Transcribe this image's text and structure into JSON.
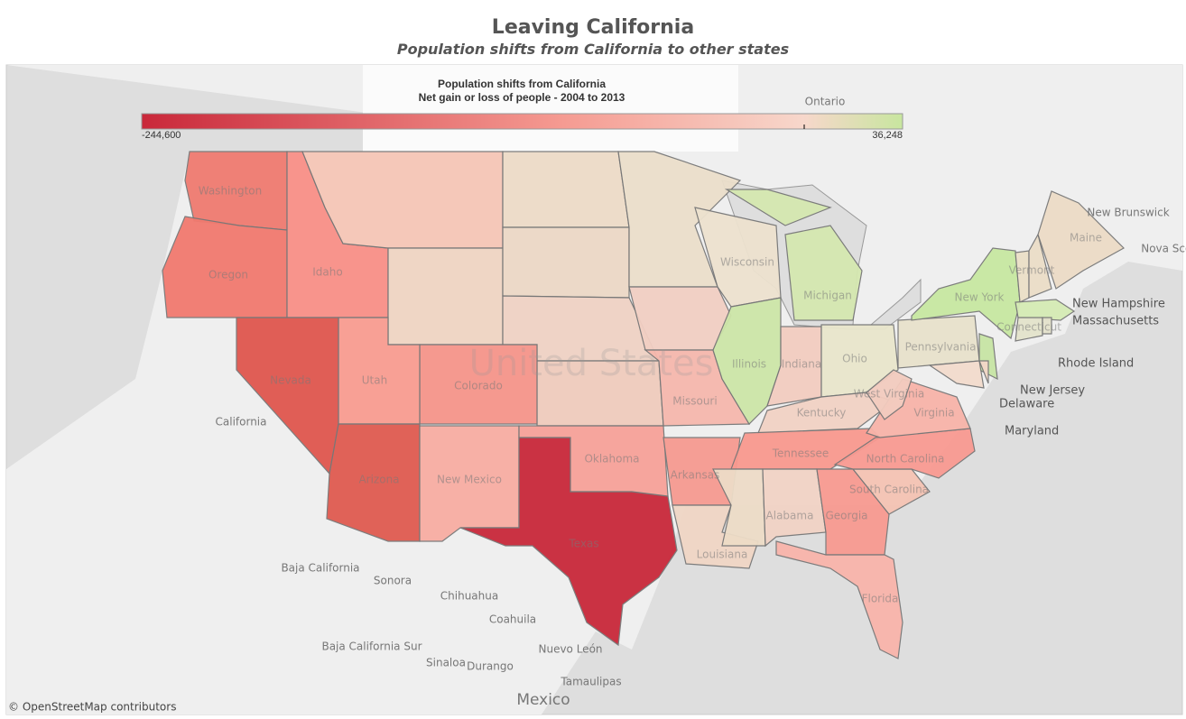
{
  "header": {
    "title": "Leaving California",
    "subtitle": "Population shifts from California to other states"
  },
  "legend": {
    "title": "Population shifts from California",
    "subtitle": "Net gain or loss of people - 2004 to 2013",
    "min_label": "-244,600",
    "max_label": "36,248",
    "colors": [
      "#c9283a",
      "#f59a91",
      "#f7d7cb",
      "#c8e69f"
    ]
  },
  "states": [
    {
      "name": "Washington",
      "color": "#f07b70"
    },
    {
      "name": "Oregon",
      "color": "#f27a6f"
    },
    {
      "name": "Idaho",
      "color": "#f99087"
    },
    {
      "color": "#f6c6b7"
    },
    {
      "color": "#f0d5c3"
    },
    {
      "color": "#eddcc8"
    },
    {
      "color": "#ecd8c6"
    },
    {
      "color": "#efd2c4"
    },
    {
      "color": "#f0ccbd"
    },
    {
      "name": "Colorado",
      "color": "#f6958a"
    },
    {
      "name": "Utah",
      "color": "#f99c91"
    },
    {
      "name": "Nevada",
      "color": "#e0574e"
    },
    {
      "name": "Arizona",
      "color": "#e05b50"
    },
    {
      "name": "New Mexico",
      "color": "#f8ada3"
    },
    {
      "name": "Texas",
      "color": "#c9283a"
    },
    {
      "name": "Oklahoma",
      "color": "#f7a299"
    },
    {
      "color": "#ebdfcb"
    },
    {
      "color": "#f2cfc3"
    },
    {
      "name": "Missouri",
      "color": "#f6b8ad"
    },
    {
      "name": "Arkansas",
      "color": "#f69a91"
    },
    {
      "name": "Louisiana",
      "color": "#f0d6c5"
    },
    {
      "name": "Wisconsin",
      "color": "#ede2cf"
    },
    {
      "name": "Illinois",
      "color": "#cde6a8"
    },
    {
      "name": "Michigan",
      "color": "#d5e8b0"
    },
    {
      "color": "#d5e8b0"
    },
    {
      "name": "Indiana",
      "color": "#f3cdc0"
    },
    {
      "name": "Ohio",
      "color": "#e9e6cc"
    },
    {
      "name": "Kentucky",
      "color": "#f2d2c4"
    },
    {
      "name": "Tennessee",
      "color": "#f9998f"
    },
    {
      "color": "#eddcc7"
    },
    {
      "name": "Alabama",
      "color": "#f2d3c5"
    },
    {
      "name": "Georgia",
      "color": "#f89a91"
    },
    {
      "name": "Florida",
      "color": "#f9b4ab"
    },
    {
      "name": "South Carolina",
      "color": "#f5c3b3"
    },
    {
      "name": "North Carolina",
      "color": "#f99a92"
    },
    {
      "name": "Virginia",
      "color": "#f8b4a9"
    },
    {
      "name": "West Virginia",
      "color": "#f3ccbf"
    },
    {
      "name": "Pennsylvania",
      "color": "#e8e2cc"
    },
    {
      "name": "New York",
      "color": "#c8e8a2"
    },
    {
      "name": "New Jersey",
      "color": "#c8e5a5"
    },
    {
      "name": "Maryland",
      "color": "#f3dccd"
    },
    {
      "name": "Delaware",
      "color": "#f4d8c8"
    },
    {
      "name": "Vermont",
      "color": "#ebe0c8"
    },
    {
      "name": "New Hampshire",
      "color": "#ebdec8"
    },
    {
      "name": "Maine",
      "color": "#ecdcc6"
    },
    {
      "name": "Massachusetts",
      "color": "#d5ebb5"
    },
    {
      "name": "Connecticut",
      "color": "#e4e4cc"
    },
    {
      "name": "Rhode Island",
      "color": "#e4e2cc"
    }
  ],
  "places": [
    "Ontario",
    "New Brunswick",
    "Nova Scotia",
    "California",
    "Baja California",
    "Sonora",
    "Chihuahua",
    "Coahuila",
    "Baja California Sur",
    "Nuevo León",
    "Sinaloa",
    "Durango",
    "Tamaulipas",
    "Mexico",
    "United States"
  ],
  "attribution": "© OpenStreetMap contributors"
}
